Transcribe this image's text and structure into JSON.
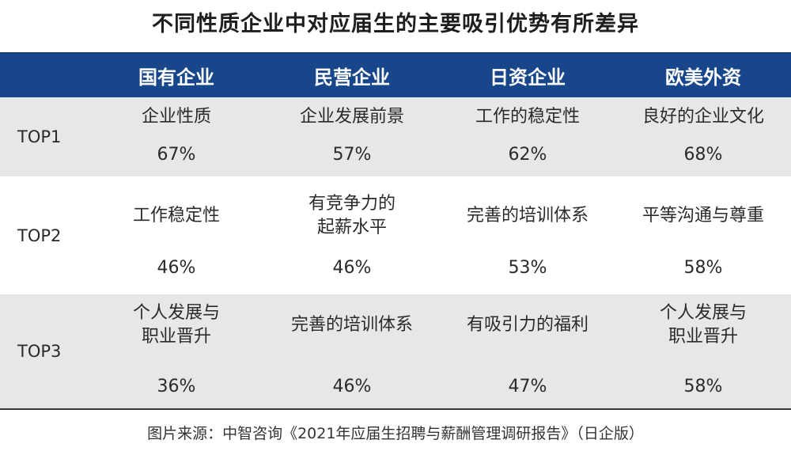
{
  "title": "不同性质企业中对应届生的主要吸引优势有所差异",
  "source": "图片来源：中智咨询《2021年应届生招聘与薪酬管理调研报告》（日企版）",
  "chart_data": {
    "type": "table",
    "columns": [
      "国有企业",
      "民营企业",
      "日资企业",
      "欧美外资"
    ],
    "rows": [
      {
        "rank": "TOP1",
        "cells": [
          {
            "factor": "企业性质",
            "pct": "67%"
          },
          {
            "factor": "企业发展前景",
            "pct": "57%"
          },
          {
            "factor": "工作的稳定性",
            "pct": "62%"
          },
          {
            "factor": "良好的企业文化",
            "pct": "68%"
          }
        ]
      },
      {
        "rank": "TOP2",
        "cells": [
          {
            "factor": "工作稳定性",
            "pct": "46%"
          },
          {
            "factor": "有竞争力的\n起薪水平",
            "pct": "46%"
          },
          {
            "factor": "完善的培训体系",
            "pct": "53%"
          },
          {
            "factor": "平等沟通与尊重",
            "pct": "58%"
          }
        ]
      },
      {
        "rank": "TOP3",
        "cells": [
          {
            "factor": "个人发展与\n职业晋升",
            "pct": "36%"
          },
          {
            "factor": "完善的培训体系",
            "pct": "46%"
          },
          {
            "factor": "有吸引力的福利",
            "pct": "47%"
          },
          {
            "factor": "个人发展与\n职业晋升",
            "pct": "58%"
          }
        ]
      }
    ]
  }
}
